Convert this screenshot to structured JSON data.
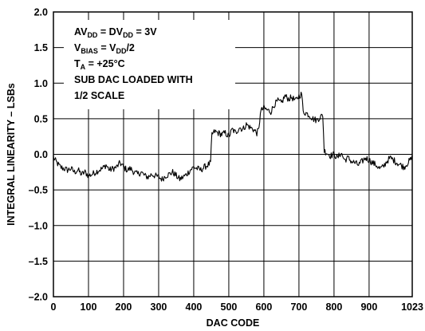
{
  "chart_data": {
    "type": "line",
    "xlabel": "DAC CODE",
    "ylabel": "INTEGRAL LINEARITY – LSBs",
    "xlim": [
      0,
      1023
    ],
    "ylim": [
      -2.0,
      2.0
    ],
    "x_ticks": [
      0,
      100,
      200,
      300,
      400,
      500,
      600,
      700,
      800,
      900,
      1023
    ],
    "x_tick_labels": [
      "0",
      "100",
      "200",
      "300",
      "400",
      "500",
      "600",
      "700",
      "800",
      "900",
      "1023"
    ],
    "y_ticks": [
      -2.0,
      -1.5,
      -1.0,
      -0.5,
      0.0,
      0.5,
      1.0,
      1.5,
      2.0
    ],
    "y_tick_labels": [
      "–2.0",
      "–1.5",
      "–1.0",
      "–0.5",
      "0.0",
      "0.5",
      "1.0",
      "1.5",
      "2.0"
    ],
    "grid": true,
    "line_color": "#000000",
    "annotations": [
      {
        "parts": [
          [
            "AV",
            "n"
          ],
          [
            "DD",
            "sub"
          ],
          [
            " = DV",
            "n"
          ],
          [
            "DD",
            "sub"
          ],
          [
            " = 3V",
            "n"
          ]
        ]
      },
      {
        "parts": [
          [
            "V",
            "n"
          ],
          [
            "BIAS",
            "sub"
          ],
          [
            " = V",
            "n"
          ],
          [
            "DD",
            "sub"
          ],
          [
            "/2",
            "n"
          ]
        ]
      },
      {
        "parts": [
          [
            "T",
            "n"
          ],
          [
            "A",
            "sub"
          ],
          [
            " = +25°C",
            "n"
          ]
        ]
      },
      {
        "parts": [
          [
            "SUB DAC LOADED WITH",
            "n"
          ]
        ]
      },
      {
        "parts": [
          [
            " 1/2 SCALE",
            "n"
          ]
        ]
      }
    ],
    "series": [
      {
        "x": [
          0,
          10,
          20,
          30,
          40,
          50,
          60,
          70,
          80,
          90,
          100,
          110,
          120,
          130,
          140,
          150,
          160,
          170,
          180,
          190,
          200,
          210,
          220,
          230,
          240,
          250,
          260,
          270,
          280,
          290,
          300,
          310,
          320,
          330,
          340,
          350,
          360,
          370,
          380,
          390,
          400,
          410,
          420,
          430,
          440,
          448,
          452,
          460,
          470,
          480,
          490,
          500,
          510,
          520,
          530,
          540,
          550,
          560,
          570,
          580,
          586,
          590,
          600,
          610,
          620,
          630,
          640,
          650,
          660,
          670,
          680,
          690,
          700,
          708,
          712,
          720,
          730,
          740,
          750,
          760,
          768,
          772,
          780,
          790,
          800,
          810,
          820,
          830,
          840,
          850,
          860,
          870,
          880,
          890,
          900,
          910,
          920,
          930,
          940,
          950,
          960,
          970,
          980,
          990,
          1000,
          1010,
          1023
        ],
        "y": [
          -0.05,
          -0.12,
          -0.18,
          -0.2,
          -0.22,
          -0.2,
          -0.25,
          -0.22,
          -0.28,
          -0.25,
          -0.3,
          -0.28,
          -0.25,
          -0.22,
          -0.2,
          -0.15,
          -0.22,
          -0.2,
          -0.18,
          -0.12,
          -0.18,
          -0.22,
          -0.2,
          -0.25,
          -0.28,
          -0.25,
          -0.3,
          -0.32,
          -0.28,
          -0.3,
          -0.32,
          -0.35,
          -0.3,
          -0.28,
          -0.25,
          -0.3,
          -0.35,
          -0.32,
          -0.28,
          -0.22,
          -0.18,
          -0.2,
          -0.22,
          -0.18,
          -0.15,
          -0.12,
          0.28,
          0.32,
          0.3,
          0.28,
          0.3,
          0.25,
          0.35,
          0.3,
          0.38,
          0.35,
          0.42,
          0.38,
          0.35,
          0.3,
          0.35,
          0.6,
          0.65,
          0.62,
          0.6,
          0.7,
          0.75,
          0.72,
          0.82,
          0.78,
          0.8,
          0.75,
          0.82,
          0.85,
          0.6,
          0.58,
          0.55,
          0.5,
          0.48,
          0.52,
          0.55,
          0.05,
          0.02,
          -0.02,
          0.0,
          -0.05,
          0.02,
          -0.08,
          -0.05,
          -0.1,
          -0.12,
          -0.15,
          -0.1,
          -0.05,
          -0.08,
          -0.12,
          -0.15,
          -0.2,
          -0.18,
          -0.1,
          -0.05,
          -0.08,
          -0.12,
          -0.15,
          -0.18,
          -0.12,
          -0.05
        ]
      }
    ]
  }
}
